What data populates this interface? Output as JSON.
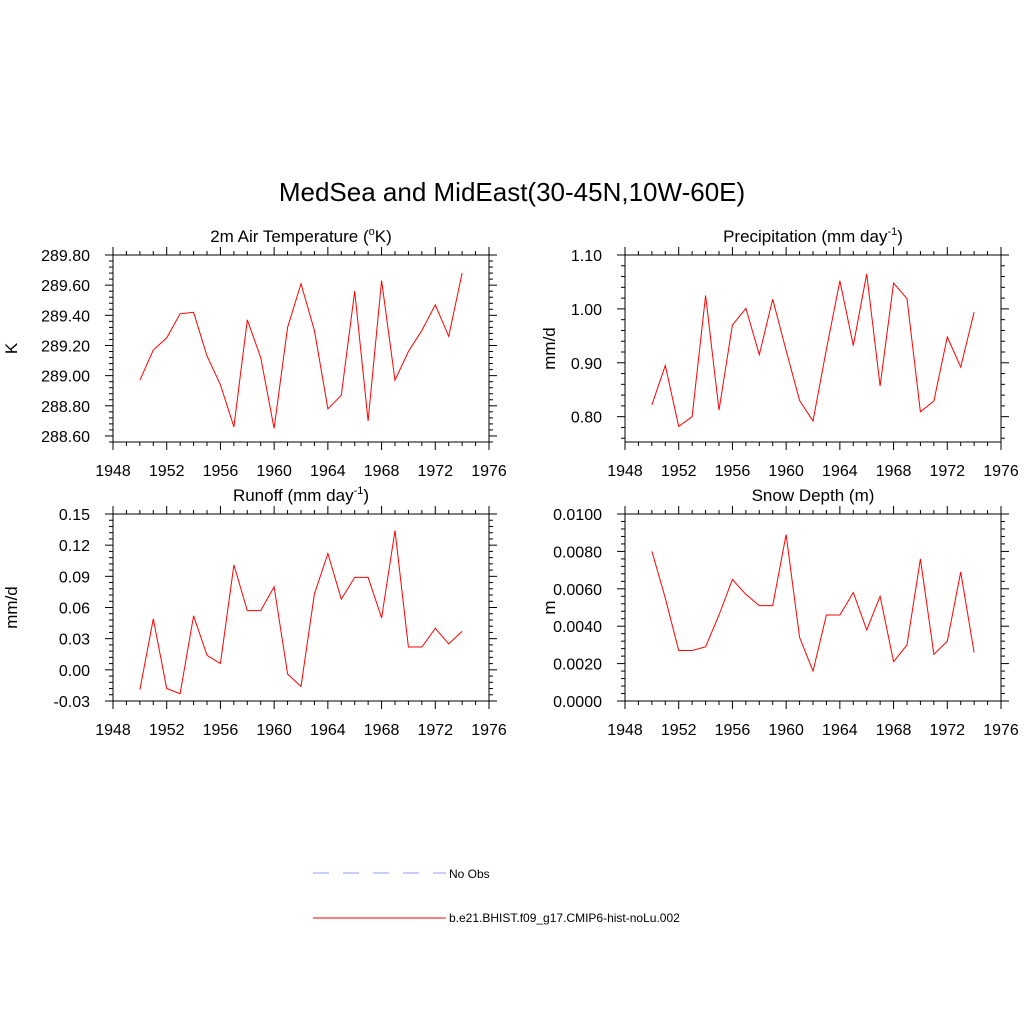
{
  "figure": {
    "title": "MedSea and MidEast(30-45N,10W-60E)"
  },
  "legend": {
    "items": [
      {
        "label": "No Obs",
        "color": "#9999ff",
        "dashed": true
      },
      {
        "label": "b.e21.BHIST.f09_g17.CMIP6-hist-noLu.002",
        "color": "#ff0000",
        "dashed": false
      }
    ]
  },
  "colors": {
    "series": "#ff0000",
    "axis": "#000000"
  },
  "chart_data": [
    {
      "type": "line",
      "title": "2m Air Temperature (",
      "title_sup": "o",
      "title_tail": "K)",
      "ylabel": "K",
      "xlim": [
        1948,
        1976
      ],
      "ylim": [
        288.56,
        289.8
      ],
      "xticks": [
        1948,
        1952,
        1956,
        1960,
        1964,
        1968,
        1972,
        1976
      ],
      "yticks": [
        288.6,
        288.8,
        289.0,
        289.2,
        289.4,
        289.6,
        289.8
      ],
      "ytick_labels": [
        "288.60",
        "288.80",
        "289.00",
        "289.20",
        "289.40",
        "289.60",
        "289.80"
      ],
      "x": [
        1950,
        1951,
        1952,
        1953,
        1954,
        1955,
        1956,
        1957,
        1958,
        1959,
        1960,
        1961,
        1962,
        1963,
        1964,
        1965,
        1966,
        1967,
        1968,
        1969,
        1970,
        1971,
        1972,
        1973,
        1974
      ],
      "series": [
        {
          "values": [
            288.97,
            289.17,
            289.25,
            289.41,
            289.42,
            289.13,
            288.94,
            288.66,
            289.37,
            289.12,
            288.65,
            289.32,
            289.61,
            289.3,
            288.78,
            288.87,
            289.56,
            288.7,
            289.63,
            288.97,
            289.16,
            289.3,
            289.47,
            289.26,
            289.68
          ]
        }
      ]
    },
    {
      "type": "line",
      "title": "Precipitation (mm day",
      "title_sup": "-1",
      "title_tail": ")",
      "ylabel": "mm/d",
      "xlim": [
        1948,
        1976
      ],
      "ylim": [
        0.753,
        1.1
      ],
      "xticks": [
        1948,
        1952,
        1956,
        1960,
        1964,
        1968,
        1972,
        1976
      ],
      "yticks": [
        0.8,
        0.9,
        1.0,
        1.1
      ],
      "ytick_labels": [
        "0.80",
        "0.90",
        "1.00",
        "1.10"
      ],
      "x": [
        1950,
        1951,
        1952,
        1953,
        1954,
        1955,
        1956,
        1957,
        1958,
        1959,
        1960,
        1961,
        1962,
        1963,
        1964,
        1965,
        1966,
        1967,
        1968,
        1969,
        1970,
        1971,
        1972,
        1973,
        1974
      ],
      "series": [
        {
          "values": [
            0.822,
            0.895,
            0.782,
            0.8,
            1.025,
            0.812,
            0.97,
            1.001,
            0.915,
            1.018,
            0.923,
            0.83,
            0.792,
            0.925,
            1.052,
            0.932,
            1.065,
            0.857,
            1.048,
            1.019,
            0.809,
            0.829,
            0.948,
            0.892,
            0.994
          ]
        }
      ]
    },
    {
      "type": "line",
      "title": "Runoff (mm day",
      "title_sup": "-1",
      "title_tail": ")",
      "ylabel": "mm/d",
      "xlim": [
        1948,
        1976
      ],
      "ylim": [
        -0.03,
        0.15
      ],
      "xticks": [
        1948,
        1952,
        1956,
        1960,
        1964,
        1968,
        1972,
        1976
      ],
      "yticks": [
        -0.03,
        0.0,
        0.03,
        0.06,
        0.09,
        0.12,
        0.15
      ],
      "ytick_labels": [
        "-0.03",
        "0.00",
        "0.03",
        "0.06",
        "0.09",
        "0.12",
        "0.15"
      ],
      "x": [
        1950,
        1951,
        1952,
        1953,
        1954,
        1955,
        1956,
        1957,
        1958,
        1959,
        1960,
        1961,
        1962,
        1963,
        1964,
        1965,
        1966,
        1967,
        1968,
        1969,
        1970,
        1971,
        1972,
        1973,
        1974
      ],
      "series": [
        {
          "values": [
            -0.019,
            0.049,
            -0.018,
            -0.023,
            0.052,
            0.014,
            0.006,
            0.101,
            0.057,
            0.057,
            0.08,
            -0.004,
            -0.016,
            0.073,
            0.112,
            0.068,
            0.089,
            0.089,
            0.05,
            0.134,
            0.022,
            0.022,
            0.04,
            0.025,
            0.037
          ]
        }
      ]
    },
    {
      "type": "line",
      "title": "Snow Depth (m)",
      "title_sup": "",
      "title_tail": "",
      "ylabel": "m",
      "xlim": [
        1948,
        1976
      ],
      "ylim": [
        0.0,
        0.01
      ],
      "xticks": [
        1948,
        1952,
        1956,
        1960,
        1964,
        1968,
        1972,
        1976
      ],
      "yticks": [
        0.0,
        0.002,
        0.004,
        0.006,
        0.008,
        0.01
      ],
      "ytick_labels": [
        "0.0000",
        "0.0020",
        "0.0040",
        "0.0060",
        "0.0080",
        "0.0100"
      ],
      "x": [
        1950,
        1951,
        1952,
        1953,
        1954,
        1955,
        1956,
        1957,
        1958,
        1959,
        1960,
        1961,
        1962,
        1963,
        1964,
        1965,
        1966,
        1967,
        1968,
        1969,
        1970,
        1971,
        1972,
        1973,
        1974
      ],
      "series": [
        {
          "values": [
            0.008,
            0.0055,
            0.0027,
            0.0027,
            0.0029,
            0.0046,
            0.0065,
            0.0057,
            0.0051,
            0.0051,
            0.0089,
            0.0034,
            0.0016,
            0.0046,
            0.0046,
            0.0058,
            0.0038,
            0.0056,
            0.0021,
            0.003,
            0.0076,
            0.0025,
            0.0032,
            0.0069,
            0.0026
          ]
        }
      ]
    }
  ]
}
